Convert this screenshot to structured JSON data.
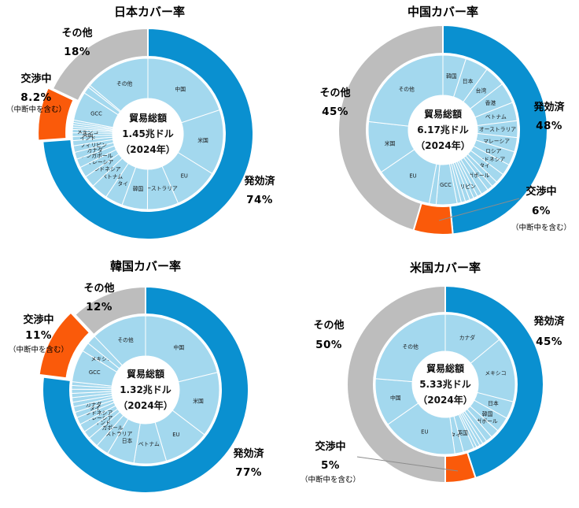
{
  "colors": {
    "effective": "#0a90d0",
    "negotiating": "#fa5a0a",
    "other": "#bdbdbd",
    "inner_fill": "#a3d8ee",
    "inner_stroke": "#ffffff"
  },
  "chart_data": [
    {
      "id": "japan",
      "type": "pie",
      "title": "日本カバー率",
      "center": [
        "貿易総額",
        "1.45兆ドル",
        "（2024年）"
      ],
      "outer": [
        {
          "key": "effective",
          "label": "発効済",
          "percent_label": "74%",
          "value": 74
        },
        {
          "key": "negotiating",
          "label": "交渉中",
          "percent_label": "8.2%",
          "note": "（中断中を含む）",
          "value": 8.2
        },
        {
          "key": "other",
          "label": "その他",
          "percent_label": "18%",
          "value": 18
        }
      ],
      "inner": [
        {
          "label": "中国",
          "value": 20.0,
          "show": true
        },
        {
          "label": "米国",
          "value": 14.0,
          "show": true
        },
        {
          "label": "EU",
          "value": 9.7,
          "show": true
        },
        {
          "label": "オーストラリア",
          "value": 6.7,
          "show": true
        },
        {
          "label": "韓国",
          "value": 5.5,
          "show": true
        },
        {
          "label": "タイ",
          "value": 3.8,
          "show": true
        },
        {
          "label": "ベトナム",
          "value": 3.6,
          "show": true
        },
        {
          "label": "インドネシア",
          "value": 2.5,
          "show": true
        },
        {
          "label": "マレーシア",
          "value": 2.3,
          "show": true
        },
        {
          "label": "シンガポール",
          "value": 1.9,
          "show": true
        },
        {
          "label": "カナダ",
          "value": 1.5,
          "show": true
        },
        {
          "label": "フィリピン",
          "value": 1.4,
          "show": true
        },
        {
          "label": "",
          "value": 1.1,
          "show": false
        },
        {
          "label": "インド",
          "value": 0.9,
          "show": true
        },
        {
          "label": "英国",
          "value": 0.8,
          "show": true
        },
        {
          "label": "メキシコ",
          "value": 0.7,
          "show": true
        },
        {
          "label": "",
          "value": 0.5,
          "show": false
        },
        {
          "label": "",
          "value": 0.5,
          "show": false
        },
        {
          "label": "",
          "value": 0.5,
          "show": false
        },
        {
          "label": "",
          "value": 0.5,
          "show": false
        },
        {
          "label": "GCC",
          "value": 6.2,
          "show": true
        },
        {
          "label": "",
          "value": 1.5,
          "show": false
        },
        {
          "label": "",
          "value": 0.5,
          "show": false
        },
        {
          "label": "その他",
          "value": 14.0,
          "show": true
        }
      ]
    },
    {
      "id": "china",
      "type": "pie",
      "title": "中国カバー率",
      "center": [
        "貿易総額",
        "6.17兆ドル",
        "（2024年）"
      ],
      "outer": [
        {
          "key": "effective",
          "label": "発効済",
          "percent_label": "48%",
          "value": 48
        },
        {
          "key": "negotiating",
          "label": "交渉中",
          "percent_label": "6%",
          "note": "（中断中を含む）",
          "value": 6
        },
        {
          "key": "other",
          "label": "その他",
          "percent_label": "45%",
          "value": 45
        }
      ],
      "inner": [
        {
          "label": "韓国",
          "value": 5.0,
          "show": true
        },
        {
          "label": "日本",
          "value": 5.0,
          "show": true
        },
        {
          "label": "台湾",
          "value": 4.5,
          "show": true
        },
        {
          "label": "香港",
          "value": 4.5,
          "show": true
        },
        {
          "label": "ベトナム",
          "value": 4.0,
          "show": true
        },
        {
          "label": "オーストラリア",
          "value": 3.6,
          "show": true
        },
        {
          "label": "マレーシア",
          "value": 3.1,
          "show": true
        },
        {
          "label": "ロシア",
          "value": 3.0,
          "show": true
        },
        {
          "label": "インドネシア",
          "value": 2.4,
          "show": true
        },
        {
          "label": "タイ",
          "value": 2.1,
          "show": true
        },
        {
          "label": "",
          "value": 1.3,
          "show": false
        },
        {
          "label": "",
          "value": 1.2,
          "show": false
        },
        {
          "label": "シンガポール",
          "value": 1.6,
          "show": true
        },
        {
          "label": "",
          "value": 1.0,
          "show": false
        },
        {
          "label": "",
          "value": 0.9,
          "show": false
        },
        {
          "label": "",
          "value": 0.9,
          "show": false
        },
        {
          "label": "フィリピン",
          "value": 1.0,
          "show": true
        },
        {
          "label": "",
          "value": 0.9,
          "show": false
        },
        {
          "label": "",
          "value": 0.9,
          "show": false
        },
        {
          "label": "GCC",
          "value": 4.5,
          "show": true
        },
        {
          "label": "",
          "value": 1.5,
          "show": false
        },
        {
          "label": "EU",
          "value": 12.5,
          "show": true
        },
        {
          "label": "米国",
          "value": 11.3,
          "show": true
        },
        {
          "label": "その他",
          "value": 23.2,
          "show": true
        }
      ]
    },
    {
      "id": "korea",
      "type": "pie",
      "title": "韓国カバー率",
      "center": [
        "貿易総額",
        "1.32兆ドル",
        "（2024年）"
      ],
      "outer": [
        {
          "key": "effective",
          "label": "発効済",
          "percent_label": "77%",
          "value": 77
        },
        {
          "key": "negotiating",
          "label": "交渉中",
          "percent_label": "11%",
          "note": "（中断中を含む）",
          "value": 11
        },
        {
          "key": "other",
          "label": "その他",
          "percent_label": "12%",
          "value": 12
        }
      ],
      "inner": [
        {
          "label": "中国",
          "value": 21.0,
          "show": true
        },
        {
          "label": "米国",
          "value": 14.0,
          "show": true
        },
        {
          "label": "EU",
          "value": 10.0,
          "show": true
        },
        {
          "label": "ベトナム",
          "value": 7.0,
          "show": true
        },
        {
          "label": "日本",
          "value": 6.0,
          "show": true
        },
        {
          "label": "オーストラリア",
          "value": 2.8,
          "show": true
        },
        {
          "label": "シンガポール",
          "value": 2.3,
          "show": true
        },
        {
          "label": "インド",
          "value": 1.7,
          "show": true
        },
        {
          "label": "マレーシア",
          "value": 1.8,
          "show": true
        },
        {
          "label": "インドネシア",
          "value": 1.6,
          "show": true
        },
        {
          "label": "タイ",
          "value": 1.2,
          "show": true
        },
        {
          "label": "カナダ",
          "value": 1.2,
          "show": true
        },
        {
          "label": "",
          "value": 1.0,
          "show": false
        },
        {
          "label": "",
          "value": 1.0,
          "show": false
        },
        {
          "label": "",
          "value": 0.9,
          "show": false
        },
        {
          "label": "",
          "value": 0.9,
          "show": false
        },
        {
          "label": "",
          "value": 0.8,
          "show": false
        },
        {
          "label": "",
          "value": 0.8,
          "show": false
        },
        {
          "label": "GCC",
          "value": 7.0,
          "show": true
        },
        {
          "label": "メキシコ",
          "value": 2.0,
          "show": true
        },
        {
          "label": "",
          "value": 2.0,
          "show": false
        },
        {
          "label": "その他",
          "value": 12.0,
          "show": true
        }
      ]
    },
    {
      "id": "usa",
      "type": "pie",
      "title": "米国カバー率",
      "center": [
        "貿易総額",
        "5.33兆ドル",
        "（2024年）"
      ],
      "outer": [
        {
          "key": "effective",
          "label": "発効済",
          "percent_label": "45%",
          "value": 45
        },
        {
          "key": "negotiating",
          "label": "交渉中",
          "percent_label": "5%",
          "note": "（中断中を含む）",
          "value": 5
        },
        {
          "key": "other",
          "label": "その他",
          "percent_label": "50%",
          "value": 50
        }
      ],
      "inner": [
        {
          "label": "カナダ",
          "value": 14.0,
          "show": true
        },
        {
          "label": "メキシコ",
          "value": 15.0,
          "show": true
        },
        {
          "label": "日本",
          "value": 4.0,
          "show": true
        },
        {
          "label": "韓国",
          "value": 3.5,
          "show": true
        },
        {
          "label": "シンガポール",
          "value": 2.0,
          "show": true
        },
        {
          "label": "",
          "value": 1.5,
          "show": false
        },
        {
          "label": "",
          "value": 1.0,
          "show": false
        },
        {
          "label": "",
          "value": 0.8,
          "show": false
        },
        {
          "label": "",
          "value": 0.8,
          "show": false
        },
        {
          "label": "",
          "value": 0.7,
          "show": false
        },
        {
          "label": "英国",
          "value": 2.5,
          "show": true
        },
        {
          "label": "タイ",
          "value": 2.0,
          "show": true
        },
        {
          "label": "EU",
          "value": 17.5,
          "show": true
        },
        {
          "label": "中国",
          "value": 11.0,
          "show": true
        },
        {
          "label": "その他",
          "value": 23.7,
          "show": true
        }
      ]
    }
  ]
}
